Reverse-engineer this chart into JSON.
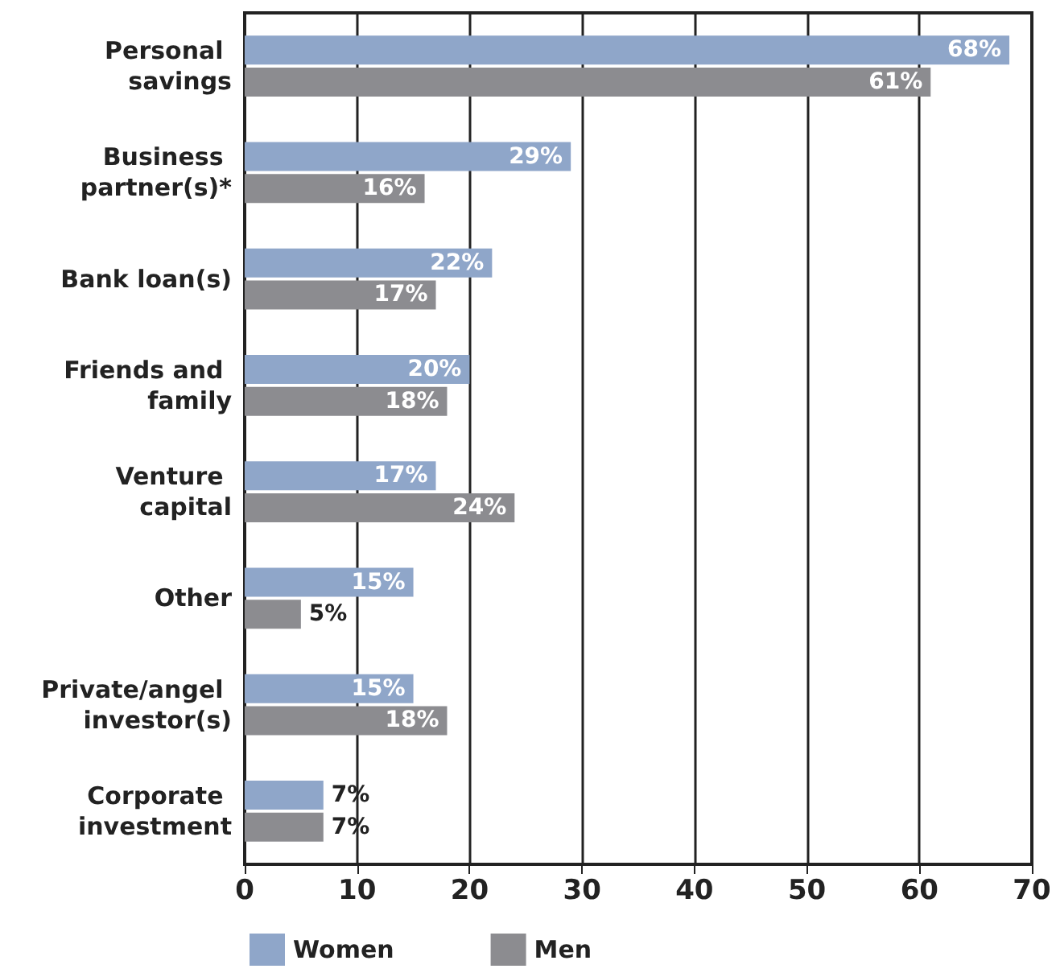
{
  "chart_data": {
    "type": "bar",
    "orientation": "horizontal",
    "categories": [
      "Personal savings",
      "Business partner(s)*",
      "Bank loan(s)",
      "Friends and family",
      "Venture capital",
      "Other",
      "Private/angel investor(s)",
      "Corporate investment"
    ],
    "series": [
      {
        "name": "Women",
        "color": "#8fa6c9",
        "values": [
          68,
          29,
          22,
          20,
          17,
          15,
          15,
          7
        ],
        "value_labels": [
          "68%",
          "29%",
          "22%",
          "20%",
          "17%",
          "15%",
          "15%",
          "7%"
        ]
      },
      {
        "name": "Men",
        "color": "#8c8c90",
        "values": [
          61,
          16,
          17,
          18,
          24,
          5,
          18,
          7
        ],
        "value_labels": [
          "61%",
          "16%",
          "17%",
          "18%",
          "24%",
          "5%",
          "18%",
          "7%"
        ]
      }
    ],
    "xlim": [
      0,
      70
    ],
    "xticks": [
      0,
      10,
      20,
      30,
      40,
      50,
      60,
      70
    ],
    "grid": "x",
    "legend": "bottom left"
  }
}
